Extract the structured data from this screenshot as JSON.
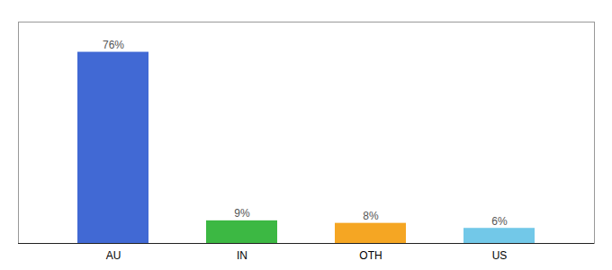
{
  "chart_data": {
    "type": "bar",
    "categories": [
      "AU",
      "IN",
      "OTH",
      "US"
    ],
    "values": [
      76,
      9,
      8,
      6
    ],
    "value_labels": [
      "76%",
      "9%",
      "8%",
      "6%"
    ],
    "colors": [
      "#4169d4",
      "#3cb843",
      "#f5a623",
      "#72c8e8"
    ],
    "ylim": [
      0,
      88
    ],
    "data_labels": true,
    "tick_labels": "x"
  }
}
